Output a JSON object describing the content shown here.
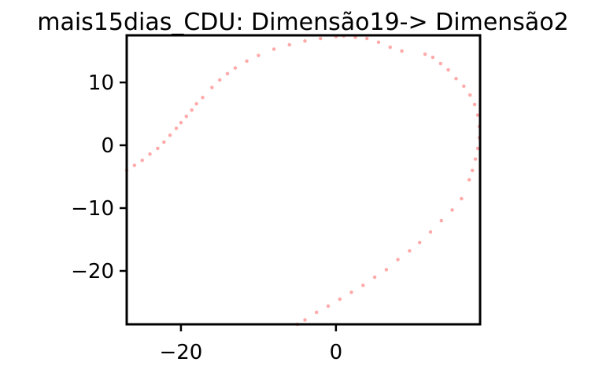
{
  "chart_data": {
    "type": "scatter",
    "title": "mais15dias_CDU: Dimensão19-> Dimensão2",
    "xlabel": "",
    "ylabel": "",
    "xlim": [
      -27,
      18.6
    ],
    "ylim": [
      -28.5,
      17.5
    ],
    "xticks": [
      -20,
      0
    ],
    "xtick_labels": [
      "−20",
      "0"
    ],
    "yticks": [
      10,
      0,
      -10,
      -20
    ],
    "ytick_labels": [
      "10",
      "0",
      "−10",
      "−20"
    ],
    "grid": false,
    "point_color": "#ff4040",
    "series": [
      {
        "points": [
          [
            -27.0,
            -4.0
          ],
          [
            -26.0,
            -3.2
          ],
          [
            -25.0,
            -2.4
          ],
          [
            -24.0,
            -1.4
          ],
          [
            -23.0,
            -0.5
          ],
          [
            -22.2,
            0.5
          ],
          [
            -21.4,
            1.6
          ],
          [
            -20.6,
            2.7
          ],
          [
            -20.0,
            3.6
          ],
          [
            -19.3,
            4.6
          ],
          [
            -18.6,
            5.6
          ],
          [
            -18.0,
            6.6
          ],
          [
            -17.2,
            7.6
          ],
          [
            -16.0,
            9.2
          ],
          [
            -15.0,
            10.4
          ],
          [
            -14.0,
            11.4
          ],
          [
            -13.0,
            12.3
          ],
          [
            -11.5,
            13.4
          ],
          [
            -10.0,
            14.3
          ],
          [
            -8.0,
            15.3
          ],
          [
            -6.0,
            16.0
          ],
          [
            -4.0,
            16.6
          ],
          [
            -2.0,
            17.0
          ],
          [
            0.0,
            17.3
          ],
          [
            1.0,
            17.4
          ],
          [
            2.5,
            17.2
          ],
          [
            4.0,
            17.0
          ],
          [
            5.5,
            16.4
          ],
          [
            7.0,
            15.6
          ],
          [
            8.5,
            15.0
          ],
          [
            11.5,
            14.5
          ],
          [
            12.5,
            14.0
          ],
          [
            13.5,
            13.0
          ],
          [
            14.5,
            12.0
          ],
          [
            15.5,
            10.6
          ],
          [
            16.5,
            9.4
          ],
          [
            17.3,
            8.0
          ],
          [
            17.9,
            6.5
          ],
          [
            18.3,
            4.8
          ],
          [
            18.5,
            3.0
          ],
          [
            18.5,
            1.2
          ],
          [
            18.3,
            -0.5
          ],
          [
            18.0,
            -2.2
          ],
          [
            17.6,
            -4.0
          ],
          [
            17.2,
            -5.5
          ],
          [
            16.2,
            -8.5
          ],
          [
            15.0,
            -10.3
          ],
          [
            13.6,
            -12.0
          ],
          [
            12.2,
            -13.8
          ],
          [
            10.8,
            -15.5
          ],
          [
            9.5,
            -16.8
          ],
          [
            8.0,
            -18.2
          ],
          [
            6.5,
            -19.8
          ],
          [
            5.0,
            -21.0
          ],
          [
            3.5,
            -22.3
          ],
          [
            2.0,
            -23.4
          ],
          [
            0.5,
            -24.5
          ],
          [
            -1.0,
            -25.6
          ],
          [
            -2.5,
            -26.6
          ],
          [
            -4.0,
            -27.8
          ],
          [
            -5.0,
            -28.5
          ]
        ]
      }
    ]
  }
}
